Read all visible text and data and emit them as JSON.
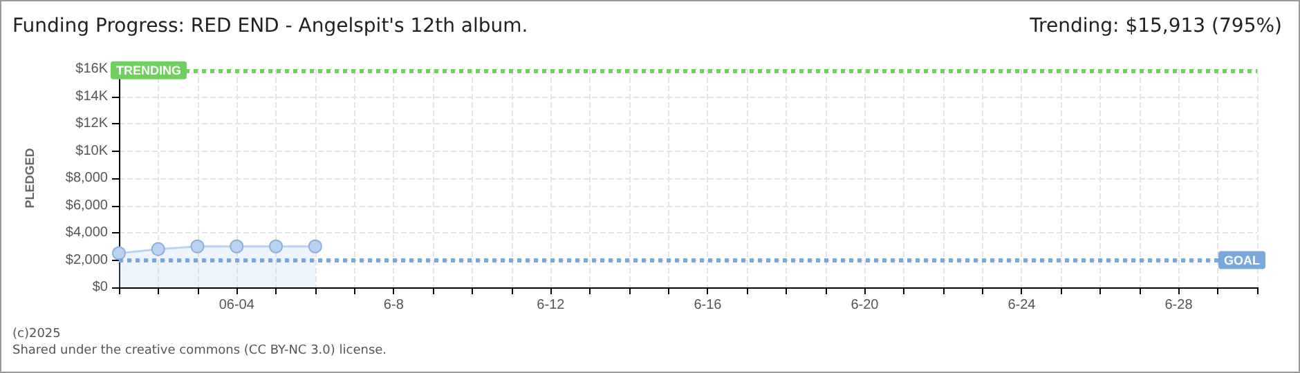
{
  "chart_data": {
    "type": "area",
    "title": "Funding Progress: RED END - Angelspit's 12th album.",
    "ylabel": "PLEDGED",
    "annotations": [
      "Trending: $15,913 (795%)",
      "(c)2025",
      "Shared under the creative commons (CC BY-NC 3.0) license."
    ],
    "x": [
      "--06-01",
      "--06-02",
      "--06-03",
      "--06-04",
      "--06-05",
      "--06-06"
    ],
    "series": [
      {
        "color": "#b8d3f2",
        "values": [
          2500,
          2800,
          3000,
          3000,
          3000,
          3000
        ]
      }
    ],
    "xlim": [
      "--06-01",
      "--06-30"
    ],
    "xticks": [
      {
        "value": "--06-01",
        "label": null
      },
      {
        "value": "--06-02",
        "label": null
      },
      {
        "value": "--06-03",
        "label": null
      },
      {
        "value": "--06-04",
        "label": "06-04"
      },
      {
        "value": "--06-05",
        "label": null
      },
      {
        "value": "--06-06",
        "label": null
      },
      {
        "value": "--06-07",
        "label": null
      },
      {
        "value": "--06-08",
        "label": "6-8"
      },
      {
        "value": "--06-09",
        "label": null
      },
      {
        "value": "--06-10",
        "label": null
      },
      {
        "value": "--06-11",
        "label": null
      },
      {
        "value": "--06-12",
        "label": "6-12"
      },
      {
        "value": "--06-13",
        "label": null
      },
      {
        "value": "--06-14",
        "label": null
      },
      {
        "value": "--06-15",
        "label": null
      },
      {
        "value": "--06-16",
        "label": "6-16"
      },
      {
        "value": "--06-17",
        "label": null
      },
      {
        "value": "--06-18",
        "label": null
      },
      {
        "value": "--06-19",
        "label": null
      },
      {
        "value": "--06-20",
        "label": "6-20"
      },
      {
        "value": "--06-21",
        "label": null
      },
      {
        "value": "--06-22",
        "label": null
      },
      {
        "value": "--06-23",
        "label": null
      },
      {
        "value": "--06-24",
        "label": "6-24"
      },
      {
        "value": "--06-25",
        "label": null
      },
      {
        "value": "--06-26",
        "label": null
      },
      {
        "value": "--06-27",
        "label": null
      },
      {
        "value": "--06-28",
        "label": "6-28"
      },
      {
        "value": "--06-29",
        "label": null
      },
      {
        "value": "--06-30",
        "label": null
      }
    ],
    "ylim": [
      0,
      16000
    ],
    "yticks": [
      {
        "value": 0,
        "label": "$0"
      },
      {
        "value": 2000,
        "label": "$2,000"
      },
      {
        "value": 4000,
        "label": "$4,000"
      },
      {
        "value": 6000,
        "label": "$6,000"
      },
      {
        "value": 8000,
        "label": "$8,000"
      },
      {
        "value": 10000,
        "label": "$10K"
      },
      {
        "value": 12000,
        "label": "$12K"
      },
      {
        "value": 14000,
        "label": "$14K"
      },
      {
        "value": 16000,
        "label": "$16K"
      }
    ],
    "ref_lines": [
      {
        "axis": "y",
        "value": 15913,
        "label": "TRENDING",
        "color": "#6fcf5f",
        "line_style": "dotted"
      },
      {
        "axis": "y",
        "value": 2000,
        "label": "GOAL",
        "color": "#7aa7dc",
        "line_style": "dotted"
      }
    ],
    "grid": true,
    "marker": "circle",
    "line_style": "solid"
  }
}
